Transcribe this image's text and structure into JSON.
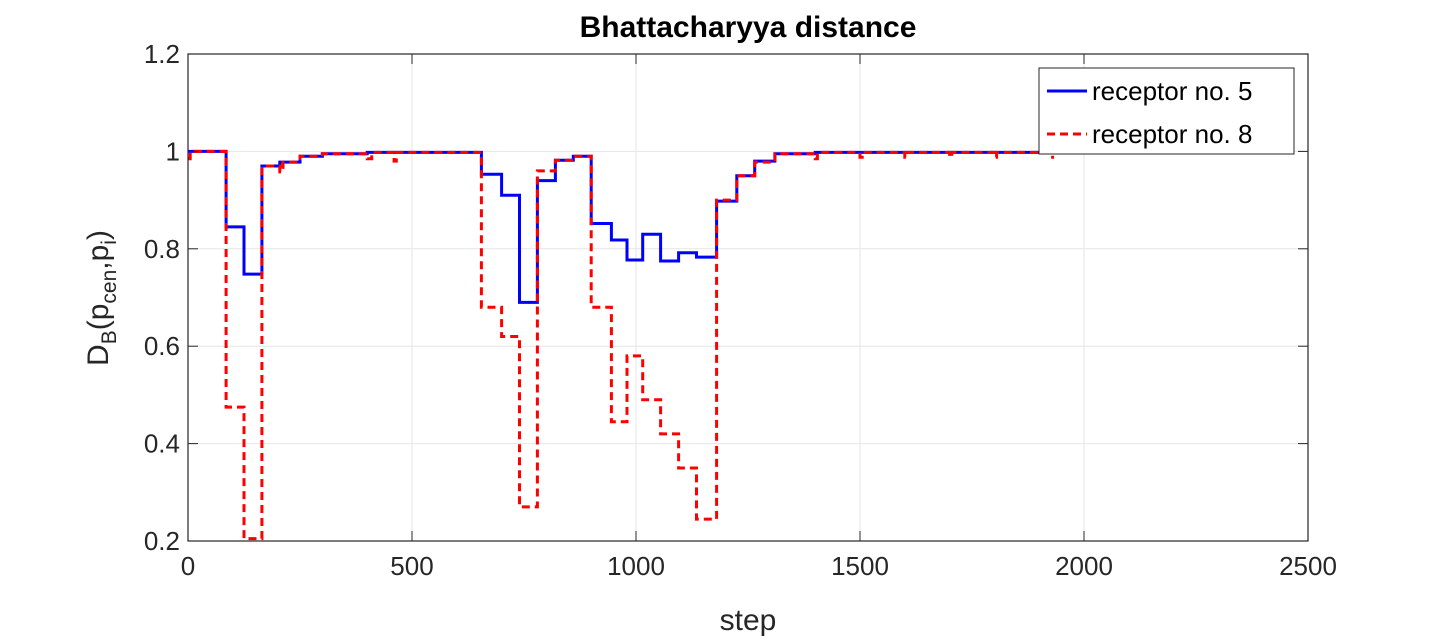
{
  "chart_data": {
    "type": "line",
    "title": "Bhattacharyya distance",
    "xlabel": "step",
    "ylabel": {
      "main": "D",
      "sub1": "B",
      "open": "(p",
      "sub2": "cen",
      "mid": ",p",
      "sub3": "i",
      "close": ")"
    },
    "xlim": [
      0,
      2500
    ],
    "ylim": [
      0.2,
      1.2
    ],
    "xticks": [
      0,
      500,
      1000,
      1500,
      2000,
      2500
    ],
    "xtick_labels": [
      "0",
      "500",
      "1000",
      "1500",
      "2000",
      "2500"
    ],
    "yticks": [
      0.2,
      0.4,
      0.6,
      0.8,
      1.0,
      1.2
    ],
    "ytick_labels": [
      "0.2",
      "0.4",
      "0.6",
      "0.8",
      "1",
      "1.2"
    ],
    "grid": true,
    "legend_position": "top-right",
    "series": [
      {
        "name": "receptor no. 5",
        "color": "#0000ff",
        "style": "solid",
        "x": [
          0,
          85,
          85,
          125,
          125,
          165,
          165,
          205,
          205,
          250,
          250,
          300,
          300,
          400,
          400,
          655,
          655,
          700,
          700,
          740,
          740,
          780,
          780,
          820,
          820,
          860,
          860,
          900,
          900,
          945,
          945,
          980,
          980,
          1015,
          1015,
          1055,
          1055,
          1095,
          1095,
          1135,
          1135,
          1180,
          1180,
          1225,
          1225,
          1265,
          1265,
          1310,
          1310,
          1400,
          1400,
          1950,
          1950
        ],
        "y": [
          1.0,
          1.0,
          0.845,
          0.845,
          0.748,
          0.748,
          0.97,
          0.97,
          0.978,
          0.978,
          0.99,
          0.99,
          0.995,
          0.995,
          0.998,
          0.998,
          0.953,
          0.953,
          0.91,
          0.91,
          0.69,
          0.69,
          0.94,
          0.94,
          0.982,
          0.982,
          0.99,
          0.99,
          0.852,
          0.852,
          0.818,
          0.818,
          0.777,
          0.777,
          0.83,
          0.83,
          0.775,
          0.775,
          0.792,
          0.792,
          0.783,
          0.783,
          0.898,
          0.898,
          0.95,
          0.95,
          0.98,
          0.98,
          0.995,
          0.995,
          0.998,
          0.998,
          1.0
        ]
      },
      {
        "name": "receptor no. 8",
        "color": "#ff0000",
        "style": "dashed",
        "x": [
          0,
          5,
          5,
          85,
          85,
          125,
          125,
          165,
          165,
          205,
          205,
          212,
          212,
          250,
          250,
          300,
          300,
          400,
          400,
          410,
          410,
          460,
          460,
          465,
          465,
          655,
          655,
          700,
          700,
          740,
          740,
          780,
          780,
          820,
          820,
          860,
          860,
          900,
          900,
          945,
          945,
          980,
          980,
          1015,
          1015,
          1055,
          1055,
          1095,
          1095,
          1135,
          1135,
          1180,
          1180,
          1225,
          1225,
          1265,
          1265,
          1310,
          1310,
          1400,
          1400,
          1405,
          1405,
          1500,
          1500,
          1505,
          1505,
          1600,
          1600,
          1605,
          1605,
          1700,
          1700,
          1705,
          1705,
          1800,
          1800,
          1805,
          1805,
          1930,
          1930
        ],
        "y": [
          0.985,
          0.985,
          1.0,
          1.0,
          0.475,
          0.475,
          0.205,
          0.205,
          0.97,
          0.97,
          0.958,
          0.958,
          0.978,
          0.978,
          0.99,
          0.99,
          0.995,
          0.995,
          0.985,
          0.985,
          0.998,
          0.998,
          0.98,
          0.98,
          0.998,
          0.998,
          0.68,
          0.68,
          0.62,
          0.62,
          0.27,
          0.27,
          0.96,
          0.96,
          0.982,
          0.982,
          0.99,
          0.99,
          0.68,
          0.68,
          0.445,
          0.445,
          0.58,
          0.58,
          0.49,
          0.49,
          0.42,
          0.42,
          0.35,
          0.35,
          0.245,
          0.245,
          0.9,
          0.9,
          0.95,
          0.95,
          0.978,
          0.978,
          0.995,
          0.995,
          0.985,
          0.985,
          0.998,
          0.998,
          0.988,
          0.988,
          0.998,
          0.998,
          0.988,
          0.988,
          0.998,
          0.998,
          0.988,
          0.988,
          0.998,
          0.998,
          0.988,
          0.988,
          0.998,
          0.998,
          0.985
        ]
      }
    ]
  }
}
